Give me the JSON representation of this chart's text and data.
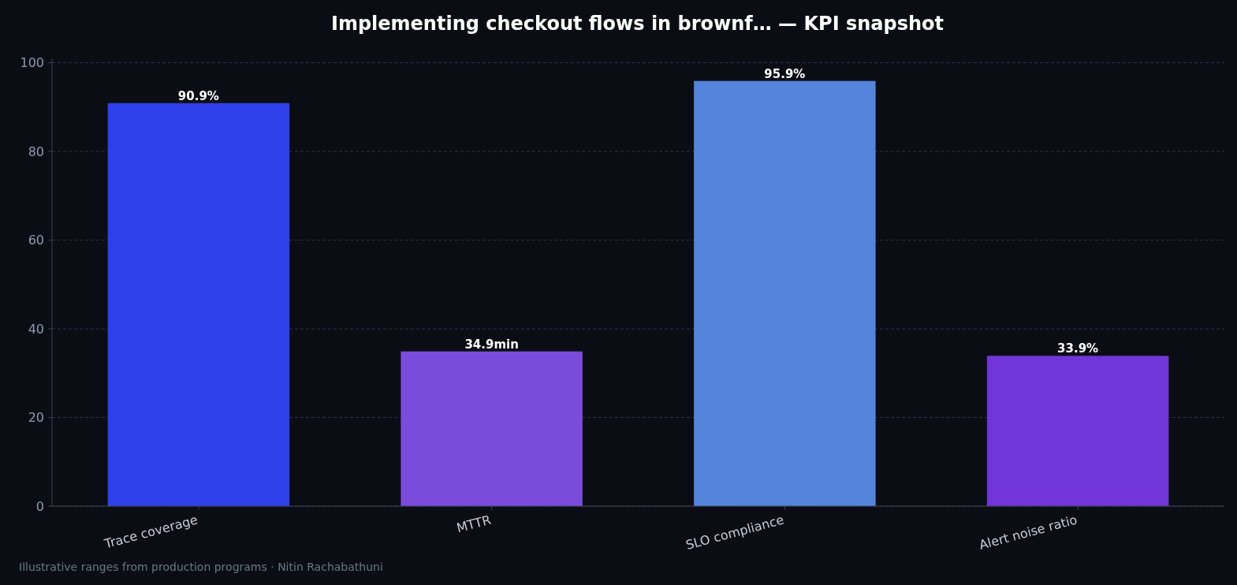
{
  "chart_data": {
    "type": "bar",
    "title": "Implementing checkout flows in brownf… — KPI snapshot",
    "categories": [
      "Trace coverage",
      "MTTR",
      "SLO compliance",
      "Alert noise ratio"
    ],
    "values": [
      90.9,
      34.9,
      95.9,
      33.9
    ],
    "colors": [
      "#2e40ea",
      "#7b4cdb",
      "#5584dd",
      "#7135d8"
    ],
    "value_labels": [
      "90.9%",
      "34.9min",
      "95.9%",
      "33.9%"
    ],
    "ylim": [
      0,
      101
    ],
    "yticks": [
      0,
      20,
      40,
      60,
      80,
      100
    ],
    "grid": "y",
    "annotations": [
      "Illustrative ranges from production programs · Nitin Rachabathuni"
    ]
  }
}
